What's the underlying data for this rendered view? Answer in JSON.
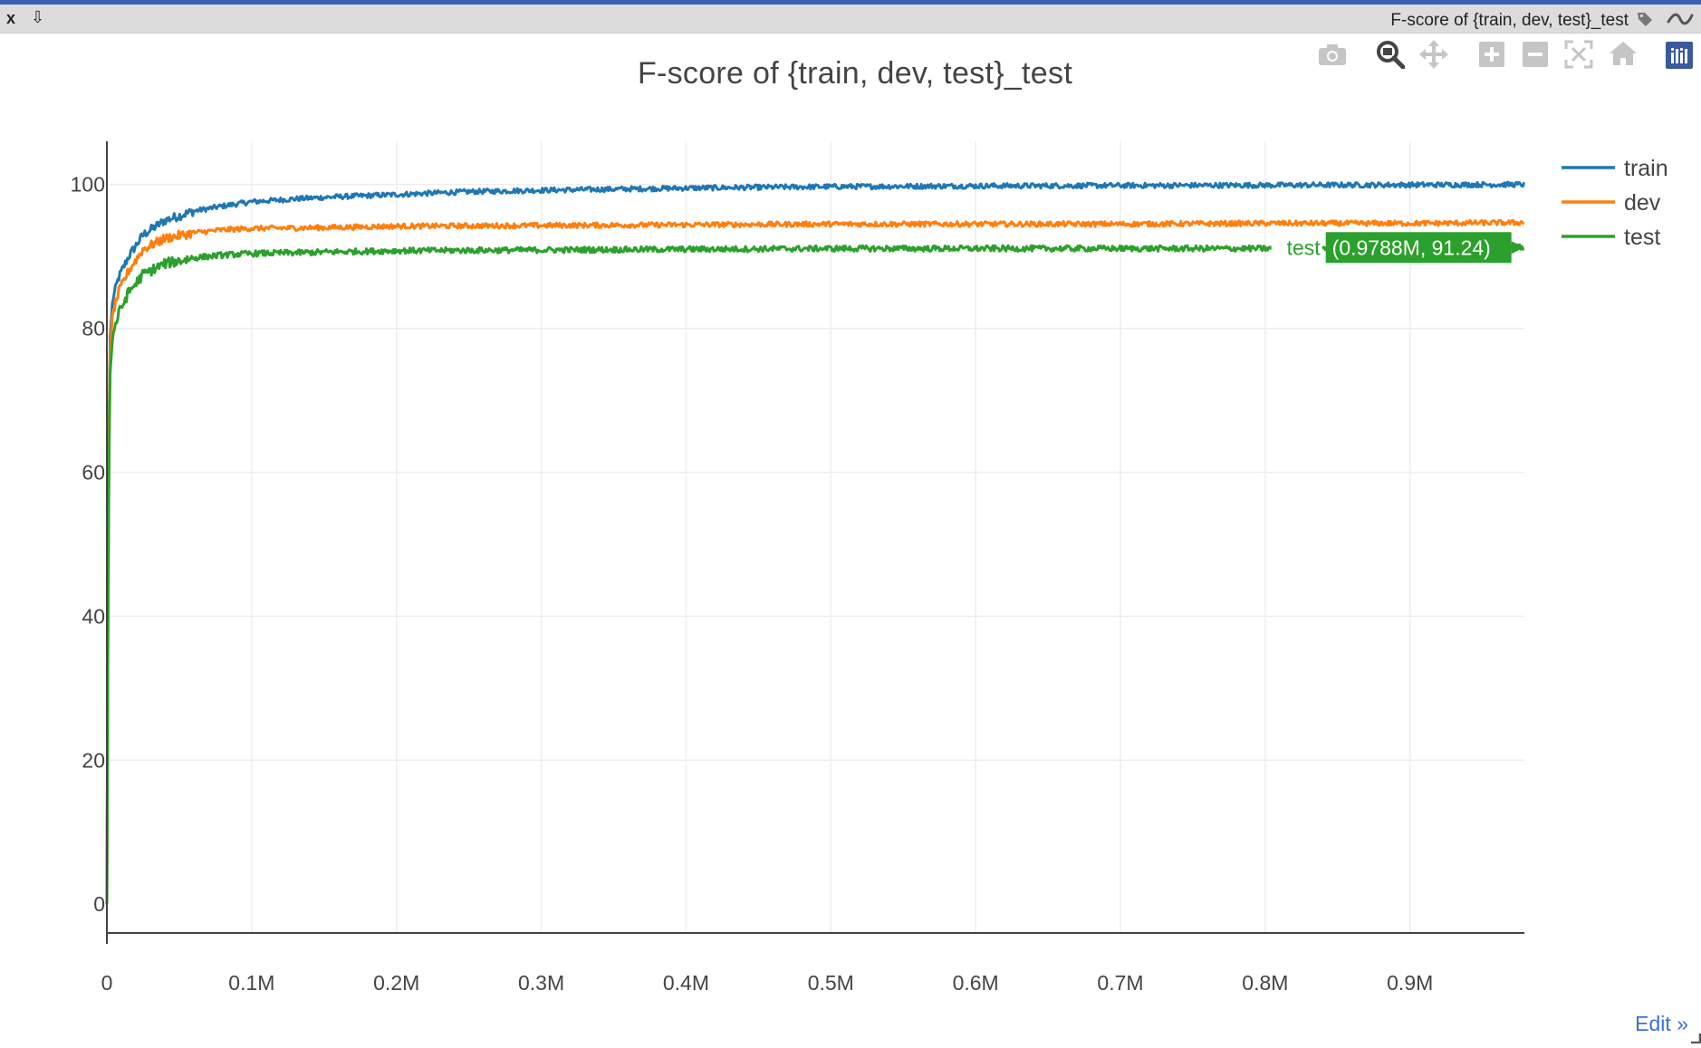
{
  "window": {
    "close_label": "x",
    "download_label": "⇩",
    "title": "F-score of {train, dev, test}_test",
    "icons": [
      "tag-icon",
      "smoothing-icon"
    ]
  },
  "modebar": {
    "buttons": [
      "camera-icon",
      "zoom-icon",
      "pan-icon",
      "zoom-in-icon",
      "zoom-out-icon",
      "autoscale-icon",
      "reset-axes-icon",
      "plotly-logo-icon"
    ]
  },
  "chart_data": {
    "type": "line",
    "title": "F-score of {train, dev, test}_test",
    "xlabel": "",
    "ylabel": "",
    "xlim": [
      0,
      979000
    ],
    "ylim": [
      -4,
      106
    ],
    "x_ticks": [
      {
        "value": 0,
        "label": "0"
      },
      {
        "value": 100000,
        "label": "0.1M"
      },
      {
        "value": 200000,
        "label": "0.2M"
      },
      {
        "value": 300000,
        "label": "0.3M"
      },
      {
        "value": 400000,
        "label": "0.4M"
      },
      {
        "value": 500000,
        "label": "0.5M"
      },
      {
        "value": 600000,
        "label": "0.6M"
      },
      {
        "value": 700000,
        "label": "0.7M"
      },
      {
        "value": 800000,
        "label": "0.8M"
      },
      {
        "value": 900000,
        "label": "0.9M"
      }
    ],
    "y_ticks": [
      {
        "value": 0,
        "label": "0"
      },
      {
        "value": 20,
        "label": "20"
      },
      {
        "value": 40,
        "label": "40"
      },
      {
        "value": 60,
        "label": "60"
      },
      {
        "value": 80,
        "label": "80"
      },
      {
        "value": 100,
        "label": "100"
      }
    ],
    "grid": true,
    "legend_position": "top-right",
    "series": [
      {
        "name": "train",
        "color": "#1f77b4",
        "points": [
          [
            0,
            0
          ],
          [
            1000,
            55
          ],
          [
            2000,
            78
          ],
          [
            4000,
            84
          ],
          [
            8000,
            87
          ],
          [
            15000,
            90
          ],
          [
            25000,
            93
          ],
          [
            40000,
            95
          ],
          [
            60000,
            96.3
          ],
          [
            80000,
            97
          ],
          [
            100000,
            97.6
          ],
          [
            130000,
            98
          ],
          [
            160000,
            98.3
          ],
          [
            200000,
            98.6
          ],
          [
            250000,
            99
          ],
          [
            300000,
            99.2
          ],
          [
            400000,
            99.5
          ],
          [
            500000,
            99.7
          ],
          [
            600000,
            99.8
          ],
          [
            700000,
            99.85
          ],
          [
            800000,
            99.9
          ],
          [
            900000,
            99.95
          ],
          [
            979000,
            100
          ]
        ],
        "noise": 0.35
      },
      {
        "name": "dev",
        "color": "#ff7f0e",
        "points": [
          [
            0,
            0
          ],
          [
            1000,
            55
          ],
          [
            2000,
            76
          ],
          [
            4000,
            82
          ],
          [
            8000,
            85
          ],
          [
            15000,
            88
          ],
          [
            25000,
            91
          ],
          [
            40000,
            92.5
          ],
          [
            60000,
            93.3
          ],
          [
            80000,
            93.7
          ],
          [
            100000,
            93.9
          ],
          [
            150000,
            94
          ],
          [
            200000,
            94.2
          ],
          [
            300000,
            94.3
          ],
          [
            400000,
            94.4
          ],
          [
            500000,
            94.5
          ],
          [
            600000,
            94.5
          ],
          [
            700000,
            94.5
          ],
          [
            800000,
            94.6
          ],
          [
            900000,
            94.6
          ],
          [
            979000,
            94.7
          ]
        ],
        "noise": 0.35
      },
      {
        "name": "test",
        "color": "#2ca02c",
        "points": [
          [
            0,
            0
          ],
          [
            1000,
            50
          ],
          [
            2000,
            73
          ],
          [
            4000,
            79
          ],
          [
            8000,
            82
          ],
          [
            15000,
            85
          ],
          [
            25000,
            87.5
          ],
          [
            40000,
            89
          ],
          [
            60000,
            89.8
          ],
          [
            80000,
            90.2
          ],
          [
            100000,
            90.4
          ],
          [
            150000,
            90.6
          ],
          [
            200000,
            90.8
          ],
          [
            300000,
            90.9
          ],
          [
            400000,
            91
          ],
          [
            500000,
            91.1
          ],
          [
            600000,
            91.1
          ],
          [
            700000,
            91.1
          ],
          [
            800000,
            91.1
          ],
          [
            900000,
            91.2
          ],
          [
            979000,
            91.24
          ]
        ],
        "noise": 0.4
      }
    ],
    "hover": {
      "series": "test",
      "label": "(0.9788M, 91.24)",
      "x": 978800,
      "y": 91.24
    }
  },
  "footer": {
    "edit_label": "Edit »"
  }
}
